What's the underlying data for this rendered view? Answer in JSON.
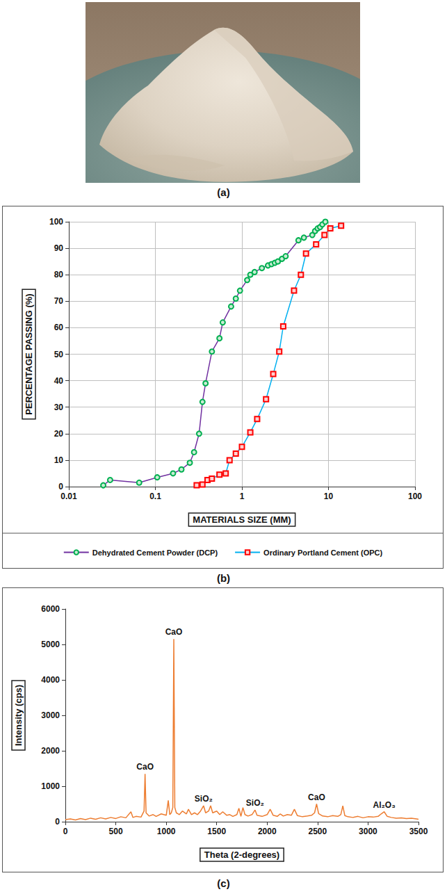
{
  "photo": {
    "label": "(a)"
  },
  "chart_data": [
    {
      "label": "(b)",
      "type": "line",
      "x_label": "MATERIALS SIZE (MM)",
      "y_label": "PERCENTAGE PASSING (%)",
      "log": "x",
      "grid": true,
      "legend": "bottom",
      "xlim": [
        0.01,
        100
      ],
      "xticks": [
        0.01,
        0.1,
        1,
        10,
        100
      ],
      "ylim": [
        0,
        100
      ],
      "yticks": [
        0,
        10,
        20,
        30,
        40,
        50,
        60,
        70,
        80,
        90,
        100
      ],
      "series": [
        {
          "name": "Dehydrated Cement Powder (DCP)",
          "color": "#7030a0",
          "marker": "circle",
          "x": [
            0.025,
            0.03,
            0.065,
            0.105,
            0.16,
            0.2,
            0.25,
            0.28,
            0.32,
            0.35,
            0.38,
            0.45,
            0.55,
            0.6,
            0.75,
            0.85,
            0.95,
            1.15,
            1.25,
            1.4,
            1.7,
            2.0,
            2.2,
            2.4,
            2.6,
            2.9,
            3.2,
            4.5,
            5.2,
            6.5,
            7,
            7.5,
            8,
            8.5,
            9.2
          ],
          "values": [
            0.5,
            2.5,
            1.5,
            3.5,
            5,
            6.5,
            9,
            13,
            20,
            32,
            39,
            51,
            56,
            62,
            68,
            71,
            74,
            78,
            80,
            81,
            82.5,
            83.5,
            84,
            84.5,
            85,
            86,
            87,
            93,
            94,
            95,
            96.5,
            97.5,
            98,
            99,
            100
          ]
        },
        {
          "name": "Ordinary Portland Cement (OPC)",
          "color": "#00b0f0",
          "marker": "square",
          "x": [
            0.3,
            0.35,
            0.4,
            0.45,
            0.55,
            0.65,
            0.72,
            0.85,
            1.0,
            1.25,
            1.5,
            1.9,
            2.3,
            2.7,
            3.0,
            4.0,
            4.8,
            5.5,
            7.2,
            9.0,
            10.5,
            14
          ],
          "values": [
            0.5,
            0.8,
            2.5,
            3,
            4.5,
            5,
            10,
            12.5,
            15,
            20.5,
            25.5,
            33,
            42.5,
            51,
            60.5,
            74,
            80,
            88,
            91.5,
            95,
            97.5,
            98.5
          ]
        }
      ]
    },
    {
      "label": "(c)",
      "type": "line",
      "x_label": "Theta (2-degrees)",
      "y_label": "Intensity (cps)",
      "grid": false,
      "color": "#ed7d31",
      "xlim": [
        0,
        3500
      ],
      "xticks": [
        0,
        500,
        1000,
        1500,
        2000,
        2500,
        3000,
        3500
      ],
      "ylim": [
        0,
        6000
      ],
      "yticks": [
        0,
        1000,
        2000,
        3000,
        4000,
        5000,
        6000
      ],
      "x": [
        0,
        50,
        100,
        150,
        200,
        250,
        300,
        350,
        400,
        450,
        500,
        550,
        600,
        650,
        670,
        700,
        750,
        780,
        790,
        800,
        830,
        870,
        900,
        950,
        1000,
        1020,
        1035,
        1050,
        1065,
        1075,
        1085,
        1100,
        1130,
        1160,
        1200,
        1220,
        1250,
        1280,
        1310,
        1340,
        1370,
        1390,
        1420,
        1440,
        1460,
        1500,
        1530,
        1560,
        1600,
        1630,
        1660,
        1700,
        1720,
        1740,
        1760,
        1780,
        1810,
        1850,
        1880,
        1900,
        1950,
        2000,
        2030,
        2060,
        2100,
        2130,
        2160,
        2200,
        2240,
        2270,
        2300,
        2350,
        2400,
        2440,
        2470,
        2490,
        2510,
        2550,
        2600,
        2650,
        2700,
        2730,
        2750,
        2770,
        2800,
        2850,
        2900,
        2950,
        3000,
        3050,
        3100,
        3130,
        3160,
        3190,
        3230,
        3280,
        3330,
        3380,
        3430,
        3480,
        3500
      ],
      "values": [
        60,
        80,
        50,
        90,
        60,
        100,
        70,
        110,
        80,
        120,
        90,
        140,
        110,
        280,
        120,
        150,
        130,
        300,
        1350,
        250,
        160,
        200,
        150,
        220,
        180,
        600,
        200,
        250,
        400,
        5150,
        400,
        250,
        200,
        300,
        220,
        350,
        200,
        250,
        200,
        300,
        450,
        250,
        300,
        450,
        250,
        300,
        200,
        280,
        180,
        200,
        150,
        200,
        380,
        150,
        400,
        200,
        160,
        200,
        330,
        180,
        150,
        200,
        350,
        180,
        150,
        220,
        160,
        200,
        180,
        350,
        170,
        140,
        160,
        180,
        250,
        500,
        230,
        160,
        140,
        170,
        150,
        200,
        450,
        170,
        140,
        120,
        150,
        110,
        140,
        130,
        150,
        220,
        280,
        150,
        120,
        100,
        110,
        90,
        100,
        80,
        70
      ],
      "annotations": [
        {
          "text": "CaO",
          "x": 790,
          "y": 1350
        },
        {
          "text": "CaO",
          "x": 1075,
          "y": 5150
        },
        {
          "text": "SiO₂",
          "x": 1370,
          "y": 450
        },
        {
          "text": "SiO₂",
          "x": 1880,
          "y": 330
        },
        {
          "text": "CaO",
          "x": 2490,
          "y": 500
        },
        {
          "text": "Al₂O₃",
          "x": 3160,
          "y": 280
        }
      ]
    }
  ]
}
